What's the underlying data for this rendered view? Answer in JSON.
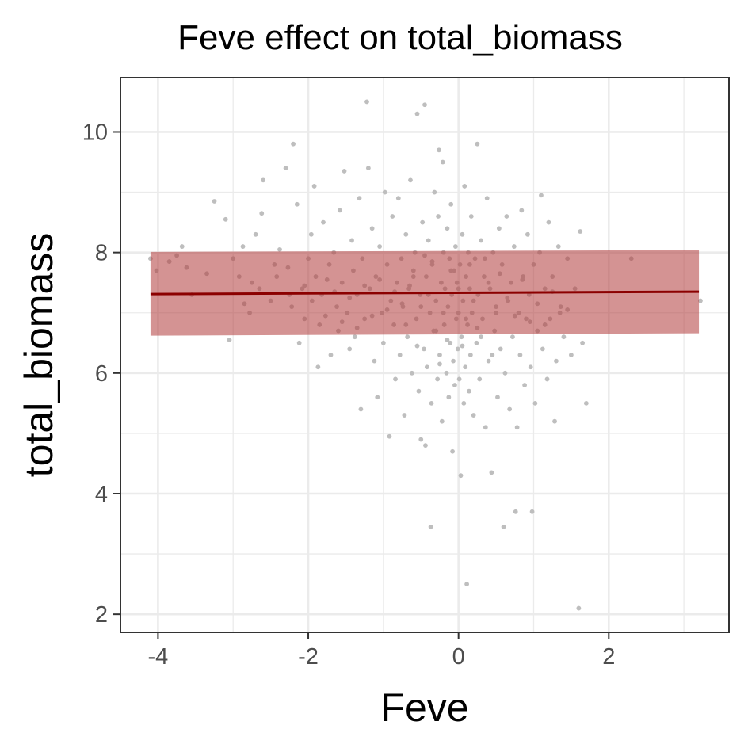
{
  "chart_data": {
    "type": "scatter",
    "title": "Feve effect on total_biomass",
    "xlabel": "Feve",
    "ylabel": "total_biomass",
    "xlim": [
      -4.5,
      3.6
    ],
    "ylim": [
      1.7,
      10.9
    ],
    "x_ticks": [
      -4,
      -2,
      0,
      2
    ],
    "x_tick_labels": [
      "-4",
      "-2",
      "0",
      "2"
    ],
    "y_ticks": [
      2,
      4,
      6,
      8,
      10
    ],
    "y_tick_labels": [
      "2",
      "4",
      "6",
      "8",
      "10"
    ],
    "grid": true,
    "legend": "none",
    "colors": {
      "points": "#bebebe",
      "fit_line": "#8b0000",
      "ribbon": "#b03a3a",
      "ribbon_opacity": 0.55
    },
    "fit_line": {
      "x": [
        -4.1,
        3.2
      ],
      "y": [
        7.31,
        7.35
      ]
    },
    "ribbon": {
      "x": [
        -4.1,
        3.2
      ],
      "ymin": [
        6.62,
        6.66
      ],
      "ymax": [
        8.01,
        8.04
      ]
    },
    "series": [
      {
        "values": [
          [
            -4.1,
            7.9
          ],
          [
            -4.02,
            7.7
          ],
          [
            -3.85,
            7.85
          ],
          [
            -3.75,
            7.95
          ],
          [
            -3.68,
            8.1
          ],
          [
            -3.62,
            7.75
          ],
          [
            -3.25,
            8.85
          ],
          [
            -3.05,
            6.55
          ],
          [
            -3.1,
            8.55
          ],
          [
            -3.0,
            7.9
          ],
          [
            -2.92,
            7.6
          ],
          [
            -2.87,
            8.1
          ],
          [
            -2.78,
            7.0
          ],
          [
            -2.75,
            7.5
          ],
          [
            -2.7,
            8.3
          ],
          [
            -2.62,
            8.65
          ],
          [
            -2.6,
            9.2
          ],
          [
            -2.5,
            7.2
          ],
          [
            -2.42,
            7.6
          ],
          [
            -2.38,
            8.05
          ],
          [
            -2.3,
            9.4
          ],
          [
            -2.27,
            7.75
          ],
          [
            -2.22,
            7.1
          ],
          [
            -2.2,
            9.8
          ],
          [
            -2.15,
            8.8
          ],
          [
            -2.12,
            6.5
          ],
          [
            -2.08,
            7.4
          ],
          [
            -2.05,
            6.9
          ],
          [
            -2.0,
            7.9
          ],
          [
            -1.96,
            8.3
          ],
          [
            -1.92,
            9.1
          ],
          [
            -1.9,
            7.6
          ],
          [
            -1.87,
            6.1
          ],
          [
            -1.82,
            7.3
          ],
          [
            -1.8,
            8.5
          ],
          [
            -1.77,
            6.95
          ],
          [
            -1.72,
            7.8
          ],
          [
            -1.7,
            6.3
          ],
          [
            -1.66,
            8.0
          ],
          [
            -1.62,
            7.1
          ],
          [
            -1.6,
            6.7
          ],
          [
            -1.58,
            8.7
          ],
          [
            -1.55,
            7.5
          ],
          [
            -1.52,
            9.35
          ],
          [
            -1.48,
            7.0
          ],
          [
            -1.45,
            6.4
          ],
          [
            -1.42,
            8.2
          ],
          [
            -1.4,
            7.7
          ],
          [
            -1.38,
            6.6
          ],
          [
            -1.35,
            7.3
          ],
          [
            -1.32,
            8.9
          ],
          [
            -1.3,
            5.4
          ],
          [
            -1.28,
            7.9
          ],
          [
            -1.25,
            6.9
          ],
          [
            -1.22,
            10.5
          ],
          [
            -1.2,
            9.4
          ],
          [
            -1.18,
            7.4
          ],
          [
            -1.15,
            8.4
          ],
          [
            -1.12,
            6.2
          ],
          [
            -1.1,
            7.6
          ],
          [
            -1.08,
            5.6
          ],
          [
            -1.05,
            8.1
          ],
          [
            -1.02,
            7.0
          ],
          [
            -1.0,
            6.5
          ],
          [
            -0.98,
            9.0
          ],
          [
            -0.95,
            7.8
          ],
          [
            -0.92,
            4.95
          ],
          [
            -0.9,
            7.2
          ],
          [
            -0.88,
            8.6
          ],
          [
            -0.86,
            6.8
          ],
          [
            -0.84,
            5.9
          ],
          [
            -0.82,
            7.5
          ],
          [
            -0.8,
            8.9
          ],
          [
            -0.78,
            6.3
          ],
          [
            -0.76,
            7.9
          ],
          [
            -0.74,
            7.1
          ],
          [
            -0.72,
            5.3
          ],
          [
            -0.7,
            8.3
          ],
          [
            -0.68,
            6.6
          ],
          [
            -0.66,
            7.4
          ],
          [
            -0.64,
            9.2
          ],
          [
            -0.62,
            6.0
          ],
          [
            -0.6,
            7.7
          ],
          [
            -0.58,
            8.0
          ],
          [
            -0.56,
            6.9
          ],
          [
            -0.55,
            10.3
          ],
          [
            -0.53,
            5.7
          ],
          [
            -0.51,
            7.3
          ],
          [
            -0.5,
            4.9
          ],
          [
            -0.48,
            8.5
          ],
          [
            -0.46,
            6.4
          ],
          [
            -0.45,
            10.45
          ],
          [
            -0.44,
            4.8
          ],
          [
            -0.43,
            7.6
          ],
          [
            -0.42,
            6.1
          ],
          [
            -0.4,
            8.2
          ],
          [
            -0.38,
            7.0
          ],
          [
            -0.37,
            3.45
          ],
          [
            -0.36,
            5.5
          ],
          [
            -0.35,
            7.8
          ],
          [
            -0.33,
            6.7
          ],
          [
            -0.32,
            9.0
          ],
          [
            -0.3,
            7.2
          ],
          [
            -0.28,
            5.9
          ],
          [
            -0.27,
            8.6
          ],
          [
            -0.26,
            9.7
          ],
          [
            -0.25,
            6.3
          ],
          [
            -0.23,
            7.5
          ],
          [
            -0.22,
            5.2
          ],
          [
            -0.21,
            9.5
          ],
          [
            -0.2,
            8.0
          ],
          [
            -0.19,
            6.8
          ],
          [
            -0.18,
            7.4
          ],
          [
            -0.16,
            6.0
          ],
          [
            -0.15,
            8.4
          ],
          [
            -0.14,
            7.1
          ],
          [
            -0.13,
            5.6
          ],
          [
            -0.12,
            7.9
          ],
          [
            -0.11,
            6.5
          ],
          [
            -0.1,
            8.8
          ],
          [
            -0.09,
            7.3
          ],
          [
            -0.08,
            4.7
          ],
          [
            -0.07,
            6.2
          ],
          [
            -0.06,
            7.7
          ],
          [
            -0.05,
            5.8
          ],
          [
            -0.04,
            8.1
          ],
          [
            -0.03,
            6.9
          ],
          [
            -0.02,
            7.5
          ],
          [
            -0.01,
            6.4
          ],
          [
            0.0,
            7.0
          ],
          [
            0.01,
            5.9
          ],
          [
            0.02,
            7.8
          ],
          [
            0.03,
            4.3
          ],
          [
            0.04,
            6.6
          ],
          [
            0.05,
            8.3
          ],
          [
            0.06,
            7.2
          ],
          [
            0.07,
            5.5
          ],
          [
            0.08,
            9.1
          ],
          [
            0.09,
            6.1
          ],
          [
            0.1,
            7.6
          ],
          [
            0.11,
            2.5
          ],
          [
            0.12,
            6.8
          ],
          [
            0.13,
            8.0
          ],
          [
            0.14,
            5.7
          ],
          [
            0.15,
            7.4
          ],
          [
            0.16,
            6.3
          ],
          [
            0.17,
            8.6
          ],
          [
            0.18,
            7.0
          ],
          [
            0.2,
            5.3
          ],
          [
            0.22,
            7.9
          ],
          [
            0.24,
            6.5
          ],
          [
            0.25,
            9.8
          ],
          [
            0.26,
            7.3
          ],
          [
            0.28,
            5.9
          ],
          [
            0.3,
            8.2
          ],
          [
            0.32,
            6.9
          ],
          [
            0.34,
            7.6
          ],
          [
            0.36,
            5.1
          ],
          [
            0.38,
            8.9
          ],
          [
            0.4,
            6.2
          ],
          [
            0.42,
            7.4
          ],
          [
            0.44,
            4.35
          ],
          [
            0.46,
            8.0
          ],
          [
            0.48,
            6.7
          ],
          [
            0.5,
            7.1
          ],
          [
            0.52,
            5.6
          ],
          [
            0.54,
            8.4
          ],
          [
            0.56,
            6.4
          ],
          [
            0.58,
            7.8
          ],
          [
            0.6,
            3.45
          ],
          [
            0.62,
            6.0
          ],
          [
            0.64,
            8.6
          ],
          [
            0.66,
            7.2
          ],
          [
            0.68,
            5.4
          ],
          [
            0.7,
            7.5
          ],
          [
            0.72,
            6.6
          ],
          [
            0.74,
            8.1
          ],
          [
            0.76,
            3.7
          ],
          [
            0.78,
            5.1
          ],
          [
            0.8,
            7.0
          ],
          [
            0.82,
            6.3
          ],
          [
            0.84,
            8.7
          ],
          [
            0.86,
            7.6
          ],
          [
            0.88,
            5.8
          ],
          [
            0.9,
            6.9
          ],
          [
            0.92,
            8.3
          ],
          [
            0.94,
            7.3
          ],
          [
            0.96,
            6.1
          ],
          [
            0.98,
            3.7
          ],
          [
            1.0,
            7.8
          ],
          [
            1.02,
            5.5
          ],
          [
            1.05,
            6.7
          ],
          [
            1.08,
            8.0
          ],
          [
            1.1,
            8.95
          ],
          [
            1.12,
            6.4
          ],
          [
            1.15,
            7.4
          ],
          [
            1.18,
            5.9
          ],
          [
            1.2,
            8.5
          ],
          [
            1.22,
            6.9
          ],
          [
            1.25,
            7.6
          ],
          [
            1.28,
            5.2
          ],
          [
            1.3,
            6.2
          ],
          [
            1.33,
            8.1
          ],
          [
            1.36,
            7.1
          ],
          [
            1.4,
            6.6
          ],
          [
            1.45,
            7.9
          ],
          [
            1.5,
            6.3
          ],
          [
            1.55,
            7.4
          ],
          [
            1.6,
            2.1
          ],
          [
            1.62,
            8.35
          ],
          [
            1.65,
            6.5
          ],
          [
            1.7,
            5.5
          ],
          [
            2.3,
            7.9
          ],
          [
            3.22,
            7.2
          ],
          [
            -0.6,
            7.6
          ],
          [
            -0.4,
            7.3
          ],
          [
            -0.2,
            7.0
          ],
          [
            0.0,
            7.4
          ],
          [
            0.2,
            7.2
          ],
          [
            0.4,
            7.5
          ],
          [
            -0.7,
            6.8
          ],
          [
            -0.3,
            6.7
          ],
          [
            0.1,
            6.9
          ],
          [
            0.3,
            6.6
          ],
          [
            0.5,
            7.0
          ],
          [
            -0.5,
            7.1
          ],
          [
            -0.1,
            7.7
          ],
          [
            0.15,
            7.8
          ],
          [
            0.35,
            7.9
          ],
          [
            -0.35,
            7.85
          ],
          [
            -0.15,
            6.55
          ],
          [
            0.05,
            6.45
          ],
          [
            0.25,
            6.75
          ],
          [
            -0.55,
            6.45
          ],
          [
            0.45,
            6.3
          ],
          [
            -0.25,
            6.15
          ],
          [
            -0.45,
            7.95
          ],
          [
            0.55,
            7.65
          ],
          [
            -0.65,
            7.45
          ],
          [
            0.65,
            7.25
          ],
          [
            -0.75,
            7.15
          ],
          [
            0.75,
            6.95
          ],
          [
            -0.85,
            7.35
          ],
          [
            0.85,
            7.55
          ],
          [
            -0.95,
            7.05
          ],
          [
            0.95,
            6.85
          ],
          [
            -1.05,
            7.55
          ],
          [
            1.05,
            7.15
          ],
          [
            -1.15,
            6.95
          ],
          [
            1.15,
            6.8
          ],
          [
            -1.25,
            7.45
          ],
          [
            1.25,
            7.35
          ],
          [
            -1.35,
            6.75
          ],
          [
            1.35,
            7.0
          ],
          [
            -1.45,
            7.25
          ],
          [
            1.45,
            7.05
          ],
          [
            -1.55,
            6.85
          ],
          [
            -1.65,
            7.35
          ],
          [
            -1.75,
            7.55
          ],
          [
            -1.85,
            6.8
          ],
          [
            -1.95,
            7.2
          ],
          [
            -2.05,
            7.45
          ],
          [
            -2.25,
            7.3
          ],
          [
            -2.45,
            7.8
          ],
          [
            -2.65,
            7.4
          ],
          [
            -2.85,
            7.15
          ],
          [
            -3.35,
            7.65
          ],
          [
            -3.55,
            7.3
          ]
        ]
      }
    ]
  }
}
